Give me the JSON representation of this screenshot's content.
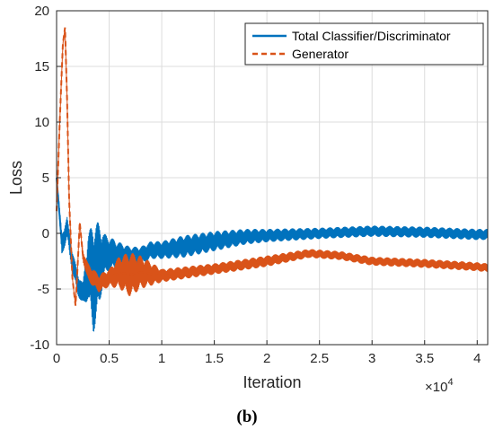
{
  "caption": "(b)",
  "chart_data": {
    "type": "line",
    "xlabel": "Iteration",
    "ylabel": "Loss",
    "x_exponent_label": "×10",
    "x_exponent_power": "4",
    "xlim": [
      0,
      4.1
    ],
    "ylim": [
      -10,
      20
    ],
    "xticks": [
      0,
      0.5,
      1,
      1.5,
      2,
      2.5,
      3,
      3.5,
      4
    ],
    "yticks": [
      -10,
      -5,
      0,
      5,
      10,
      15,
      20
    ],
    "xtick_labels": [
      "0",
      "0.5",
      "1",
      "1.5",
      "2",
      "2.5",
      "3",
      "3.5",
      "4"
    ],
    "ytick_labels": [
      "-10",
      "-5",
      "0",
      "5",
      "10",
      "15",
      "20"
    ],
    "grid": true,
    "legend_position": "top-right",
    "series": [
      {
        "name": "Total Classifier/Discriminator",
        "color": "#0072BD",
        "style": "solid",
        "x": [
          0,
          0.05,
          0.1,
          0.15,
          0.2,
          0.25,
          0.3,
          0.35,
          0.4,
          0.45,
          0.5,
          0.6,
          0.7,
          0.8,
          0.9,
          1.0,
          1.2,
          1.5,
          1.8,
          2.0,
          2.5,
          3.0,
          3.5,
          4.0,
          4.1
        ],
        "y": [
          5.0,
          -1.0,
          0.5,
          -2.5,
          -4.5,
          -5.5,
          -3.0,
          -4.0,
          -3.0,
          -2.0,
          -1.8,
          -2.0,
          -2.0,
          -2.0,
          -1.5,
          -1.5,
          -1.2,
          -0.7,
          -0.3,
          -0.2,
          0.0,
          0.2,
          0.1,
          -0.1,
          -0.1
        ],
        "band": [
          0.5,
          1.0,
          1.0,
          1.0,
          1.0,
          1.0,
          3.0,
          5.0,
          4.0,
          2.0,
          1.5,
          1.2,
          0.8,
          0.8,
          0.8,
          0.8,
          1.0,
          0.9,
          0.7,
          0.6,
          0.5,
          0.5,
          0.5,
          0.5,
          0.5
        ]
      },
      {
        "name": "Generator",
        "color": "#D95319",
        "style": "dashed",
        "x": [
          0,
          0.03,
          0.06,
          0.08,
          0.1,
          0.12,
          0.15,
          0.18,
          0.2,
          0.22,
          0.25,
          0.3,
          0.35,
          0.4,
          0.5,
          0.6,
          0.7,
          0.8,
          1.0,
          1.5,
          2.0,
          2.4,
          2.7,
          3.0,
          3.5,
          4.0,
          4.1
        ],
        "y": [
          2.0,
          10.0,
          17.0,
          18.5,
          12.0,
          3.0,
          -4.0,
          -6.5,
          -3.0,
          1.0,
          -2.0,
          -3.5,
          -4.0,
          -4.5,
          -4.0,
          -3.5,
          -3.7,
          -3.5,
          -3.8,
          -3.2,
          -2.5,
          -1.8,
          -2.0,
          -2.5,
          -2.7,
          -3.0,
          -3.1
        ],
        "band": [
          0,
          0,
          0,
          0,
          0,
          0,
          0,
          0,
          0,
          0,
          0.5,
          0.8,
          0.8,
          0.8,
          0.8,
          1.5,
          2.0,
          1.5,
          0.6,
          0.5,
          0.5,
          0.4,
          0.4,
          0.4,
          0.4,
          0.4,
          0.4
        ]
      }
    ]
  }
}
